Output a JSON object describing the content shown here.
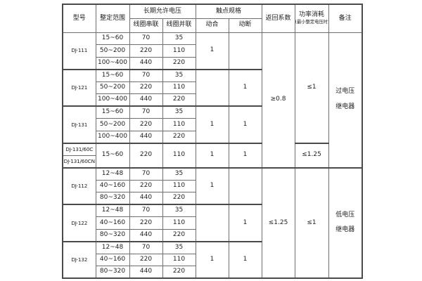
{
  "page": {
    "background_color": "#ffffff",
    "border_color": "#6f6f6f",
    "text_color": "#222222"
  },
  "table": {
    "header": {
      "model": "型号",
      "range": "整定范围",
      "voltage_group": "长期允许电压",
      "coil_series": "线圈串联",
      "coil_parallel": "线圈并联",
      "contact_group": "触点规格",
      "contact_no": "动合",
      "contact_nc": "动断",
      "return_coeff": "返回系数",
      "power": "功率消耗",
      "power_note": "(最小整定电压时)",
      "remark": "备注"
    },
    "body": [
      [
        {
          "t": "DJ-111",
          "rs": 3,
          "n": "model-cell",
          "c": "model"
        },
        {
          "t": "15~60",
          "n": "setting-range-cell"
        },
        {
          "t": "70",
          "n": "coil-series-cell"
        },
        {
          "t": "35",
          "n": "coil-parallel-cell"
        },
        {
          "t": "1",
          "rs": 3,
          "n": "contact-no-cell"
        },
        {
          "t": "",
          "rs": 3,
          "n": "contact-nc-cell"
        },
        {
          "t": "≥0.8",
          "rs": 11,
          "n": "return-coeff-cell"
        },
        {
          "t": "≤1",
          "rs": 9,
          "n": "power-cell"
        },
        {
          "t": "过电压\n继电器",
          "rs": 11,
          "n": "remark-cell",
          "c": "remark"
        }
      ],
      [
        {
          "t": "50~200",
          "n": "setting-range-cell"
        },
        {
          "t": "220",
          "n": "coil-series-cell"
        },
        {
          "t": "110",
          "n": "coil-parallel-cell"
        }
      ],
      [
        {
          "t": "100~400",
          "n": "setting-range-cell"
        },
        {
          "t": "440",
          "n": "coil-series-cell"
        },
        {
          "t": "220",
          "n": "coil-parallel-cell"
        }
      ],
      [
        {
          "t": "DJ-121",
          "rs": 3,
          "n": "model-cell",
          "c": "model",
          "sep": true
        },
        {
          "t": "15~60",
          "n": "setting-range-cell"
        },
        {
          "t": "70",
          "n": "coil-series-cell"
        },
        {
          "t": "35",
          "n": "coil-parallel-cell"
        },
        {
          "t": "",
          "rs": 3,
          "n": "contact-no-cell"
        },
        {
          "t": "1",
          "rs": 3,
          "n": "contact-nc-cell"
        }
      ],
      [
        {
          "t": "50~200",
          "n": "setting-range-cell"
        },
        {
          "t": "220",
          "n": "coil-series-cell"
        },
        {
          "t": "110",
          "n": "coil-parallel-cell"
        }
      ],
      [
        {
          "t": "100~400",
          "n": "setting-range-cell"
        },
        {
          "t": "440",
          "n": "coil-series-cell"
        },
        {
          "t": "220",
          "n": "coil-parallel-cell"
        }
      ],
      [
        {
          "t": "DJ-131",
          "rs": 3,
          "n": "model-cell",
          "c": "model",
          "sep": true
        },
        {
          "t": "15~60",
          "n": "setting-range-cell"
        },
        {
          "t": "70",
          "n": "coil-series-cell"
        },
        {
          "t": "35",
          "n": "coil-parallel-cell"
        },
        {
          "t": "1",
          "rs": 3,
          "n": "contact-no-cell"
        },
        {
          "t": "1",
          "rs": 3,
          "n": "contact-nc-cell"
        }
      ],
      [
        {
          "t": "50~200",
          "n": "setting-range-cell"
        },
        {
          "t": "220",
          "n": "coil-series-cell"
        },
        {
          "t": "110",
          "n": "coil-parallel-cell"
        }
      ],
      [
        {
          "t": "100~400",
          "n": "setting-range-cell"
        },
        {
          "t": "440",
          "n": "coil-series-cell"
        },
        {
          "t": "220",
          "n": "coil-parallel-cell"
        }
      ],
      [
        {
          "t": "DJ-131/60C",
          "n": "model-cell",
          "c": "model",
          "sep": true
        },
        {
          "t": "15~60",
          "rs": 2,
          "n": "setting-range-cell"
        },
        {
          "t": "220",
          "rs": 2,
          "n": "coil-series-cell"
        },
        {
          "t": "110",
          "rs": 2,
          "n": "coil-parallel-cell"
        },
        {
          "t": "1",
          "rs": 2,
          "n": "contact-no-cell"
        },
        {
          "t": "1",
          "rs": 2,
          "n": "contact-nc-cell"
        },
        {
          "t": "≤1.25",
          "rs": 2,
          "n": "power-cell"
        }
      ],
      [
        {
          "t": "DJ-131/60CN",
          "n": "model-cell",
          "c": "model"
        }
      ],
      [
        {
          "t": "DJ-112",
          "rs": 3,
          "n": "model-cell",
          "c": "model",
          "sep": true
        },
        {
          "t": "12~48",
          "n": "setting-range-cell"
        },
        {
          "t": "70",
          "n": "coil-series-cell"
        },
        {
          "t": "35",
          "n": "coil-parallel-cell"
        },
        {
          "t": "1",
          "rs": 3,
          "n": "contact-no-cell"
        },
        {
          "t": "",
          "rs": 3,
          "n": "contact-nc-cell"
        },
        {
          "t": "≤1.25",
          "rs": 9,
          "n": "return-coeff-cell"
        },
        {
          "t": "≤1",
          "rs": 9,
          "n": "power-cell"
        },
        {
          "t": "低电压\n继电器",
          "rs": 9,
          "n": "remark-cell",
          "c": "remark"
        }
      ],
      [
        {
          "t": "40~160",
          "n": "setting-range-cell"
        },
        {
          "t": "220",
          "n": "coil-series-cell"
        },
        {
          "t": "110",
          "n": "coil-parallel-cell"
        }
      ],
      [
        {
          "t": "80~320",
          "n": "setting-range-cell"
        },
        {
          "t": "440",
          "n": "coil-series-cell"
        },
        {
          "t": "220",
          "n": "coil-parallel-cell"
        }
      ],
      [
        {
          "t": "DJ-122",
          "rs": 3,
          "n": "model-cell",
          "c": "model",
          "sep": true
        },
        {
          "t": "12~48",
          "n": "setting-range-cell"
        },
        {
          "t": "70",
          "n": "coil-series-cell"
        },
        {
          "t": "35",
          "n": "coil-parallel-cell"
        },
        {
          "t": "",
          "rs": 3,
          "n": "contact-no-cell"
        },
        {
          "t": "1",
          "rs": 3,
          "n": "contact-nc-cell"
        }
      ],
      [
        {
          "t": "40~160",
          "n": "setting-range-cell"
        },
        {
          "t": "220",
          "n": "coil-series-cell"
        },
        {
          "t": "110",
          "n": "coil-parallel-cell"
        }
      ],
      [
        {
          "t": "80~320",
          "n": "setting-range-cell"
        },
        {
          "t": "440",
          "n": "coil-series-cell"
        },
        {
          "t": "220",
          "n": "coil-parallel-cell"
        }
      ],
      [
        {
          "t": "DJ-132",
          "rs": 3,
          "n": "model-cell",
          "c": "model",
          "sep": true
        },
        {
          "t": "12~48",
          "n": "setting-range-cell"
        },
        {
          "t": "70",
          "n": "coil-series-cell"
        },
        {
          "t": "35",
          "n": "coil-parallel-cell"
        },
        {
          "t": "1",
          "rs": 3,
          "n": "contact-no-cell"
        },
        {
          "t": "1",
          "rs": 3,
          "n": "contact-nc-cell"
        }
      ],
      [
        {
          "t": "40~160",
          "n": "setting-range-cell"
        },
        {
          "t": "220",
          "n": "coil-series-cell"
        },
        {
          "t": "110",
          "n": "coil-parallel-cell"
        }
      ],
      [
        {
          "t": "80~320",
          "n": "setting-range-cell"
        },
        {
          "t": "440",
          "n": "coil-series-cell"
        },
        {
          "t": "220",
          "n": "coil-parallel-cell"
        }
      ]
    ]
  }
}
